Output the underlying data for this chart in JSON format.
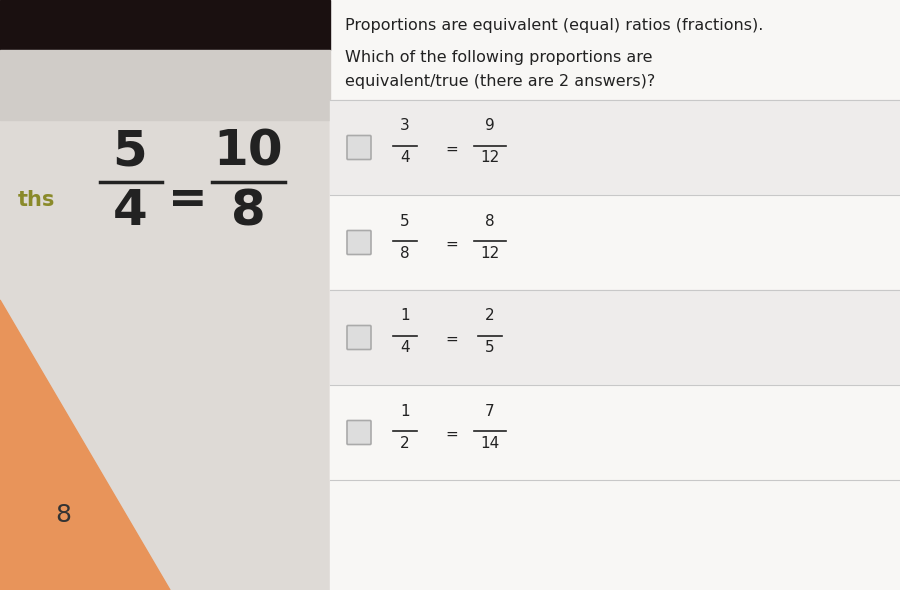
{
  "title_line1": "Proportions are equivalent (equal) ratios (fractions).",
  "title_line2": "Which of the following proportions are",
  "title_line3": "equivalent/true (there are 2 answers)?",
  "left_label": "ths",
  "left_example_num": "5",
  "left_example_den": "4",
  "left_example_num2": "10",
  "left_example_den2": "8",
  "left_number": "8",
  "options": [
    {
      "num1": "3",
      "den1": "4",
      "num2": "9",
      "den2": "12"
    },
    {
      "num1": "5",
      "den1": "8",
      "num2": "8",
      "den2": "12"
    },
    {
      "num1": "1",
      "den1": "4",
      "num2": "2",
      "den2": "5"
    },
    {
      "num1": "1",
      "den1": "2",
      "num2": "7",
      "den2": "14"
    }
  ],
  "dark_top_color": "#2a2020",
  "left_bg_color": "#e8e4e0",
  "right_bg_color": "#f4f2f0",
  "triangle_color": "#e8945a",
  "text_color": "#222222",
  "divider_color": "#c8c8c8",
  "label_color": "#8a8a2a",
  "fraction_color": "#222222",
  "checkbox_edge_color": "#aaaaaa",
  "checkbox_face_color": "#dddddd",
  "title_fontsize": 11.5,
  "option_fontsize": 11,
  "example_fontsize": 36,
  "label_fontsize": 15,
  "number8_fontsize": 18
}
